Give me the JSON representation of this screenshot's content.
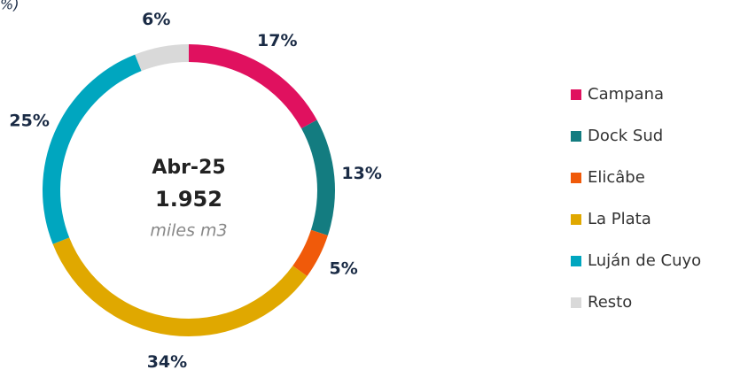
{
  "chart_data": {
    "type": "pie",
    "subtitle": "%)",
    "center_title": "Abr-25",
    "center_value": "1.952",
    "center_unit": "miles m3",
    "categories": [
      "Campana",
      "Dock Sud",
      "Elicâbe",
      "La Plata",
      "Luján de Cuyo",
      "Resto"
    ],
    "values": [
      17,
      13,
      5,
      34,
      25,
      6
    ],
    "value_labels": [
      "17%",
      "13%",
      "5%",
      "34%",
      "25%",
      "6%"
    ],
    "colors": [
      "#e0115f",
      "#137c80",
      "#f05a0a",
      "#e0a800",
      "#00a6bf",
      "#d9d9d9"
    ],
    "legend": "right"
  }
}
